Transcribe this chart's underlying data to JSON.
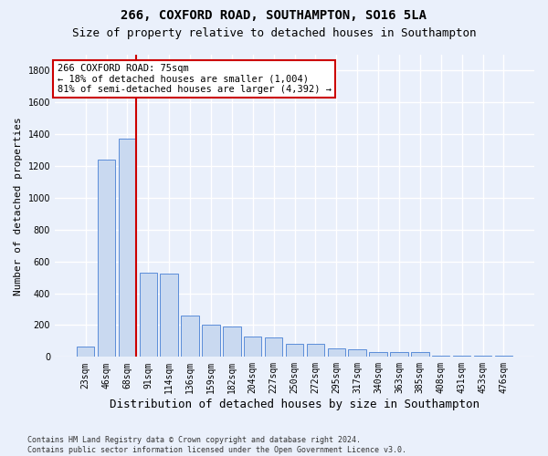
{
  "title_line1": "266, COXFORD ROAD, SOUTHAMPTON, SO16 5LA",
  "title_line2": "Size of property relative to detached houses in Southampton",
  "xlabel": "Distribution of detached houses by size in Southampton",
  "ylabel": "Number of detached properties",
  "footnote": "Contains HM Land Registry data © Crown copyright and database right 2024.\nContains public sector information licensed under the Open Government Licence v3.0.",
  "bar_labels": [
    "23sqm",
    "46sqm",
    "68sqm",
    "91sqm",
    "114sqm",
    "136sqm",
    "159sqm",
    "182sqm",
    "204sqm",
    "227sqm",
    "250sqm",
    "272sqm",
    "295sqm",
    "317sqm",
    "340sqm",
    "363sqm",
    "385sqm",
    "408sqm",
    "431sqm",
    "453sqm",
    "476sqm"
  ],
  "bar_values": [
    65,
    1240,
    1370,
    530,
    525,
    260,
    200,
    190,
    130,
    125,
    85,
    80,
    55,
    50,
    30,
    28,
    28,
    10,
    10,
    5,
    5
  ],
  "bar_color": "#c9d9f0",
  "bar_edge_color": "#5b8dd9",
  "ylim_max": 1900,
  "yticks": [
    0,
    200,
    400,
    600,
    800,
    1000,
    1200,
    1400,
    1600,
    1800
  ],
  "vline_color": "#cc0000",
  "vline_pos": 2.43,
  "annotation_text": "266 COXFORD ROAD: 75sqm\n← 18% of detached houses are smaller (1,004)\n81% of semi-detached houses are larger (4,392) →",
  "annotation_box_color": "#ffffff",
  "annotation_box_edge_color": "#cc0000",
  "bg_color": "#eaf0fb",
  "plot_bg_color": "#eaf0fb",
  "grid_color": "#ffffff",
  "title_fontsize": 10,
  "subtitle_fontsize": 9,
  "ylabel_fontsize": 8,
  "xlabel_fontsize": 9,
  "annotation_fontsize": 7.5,
  "tick_fontsize": 7
}
